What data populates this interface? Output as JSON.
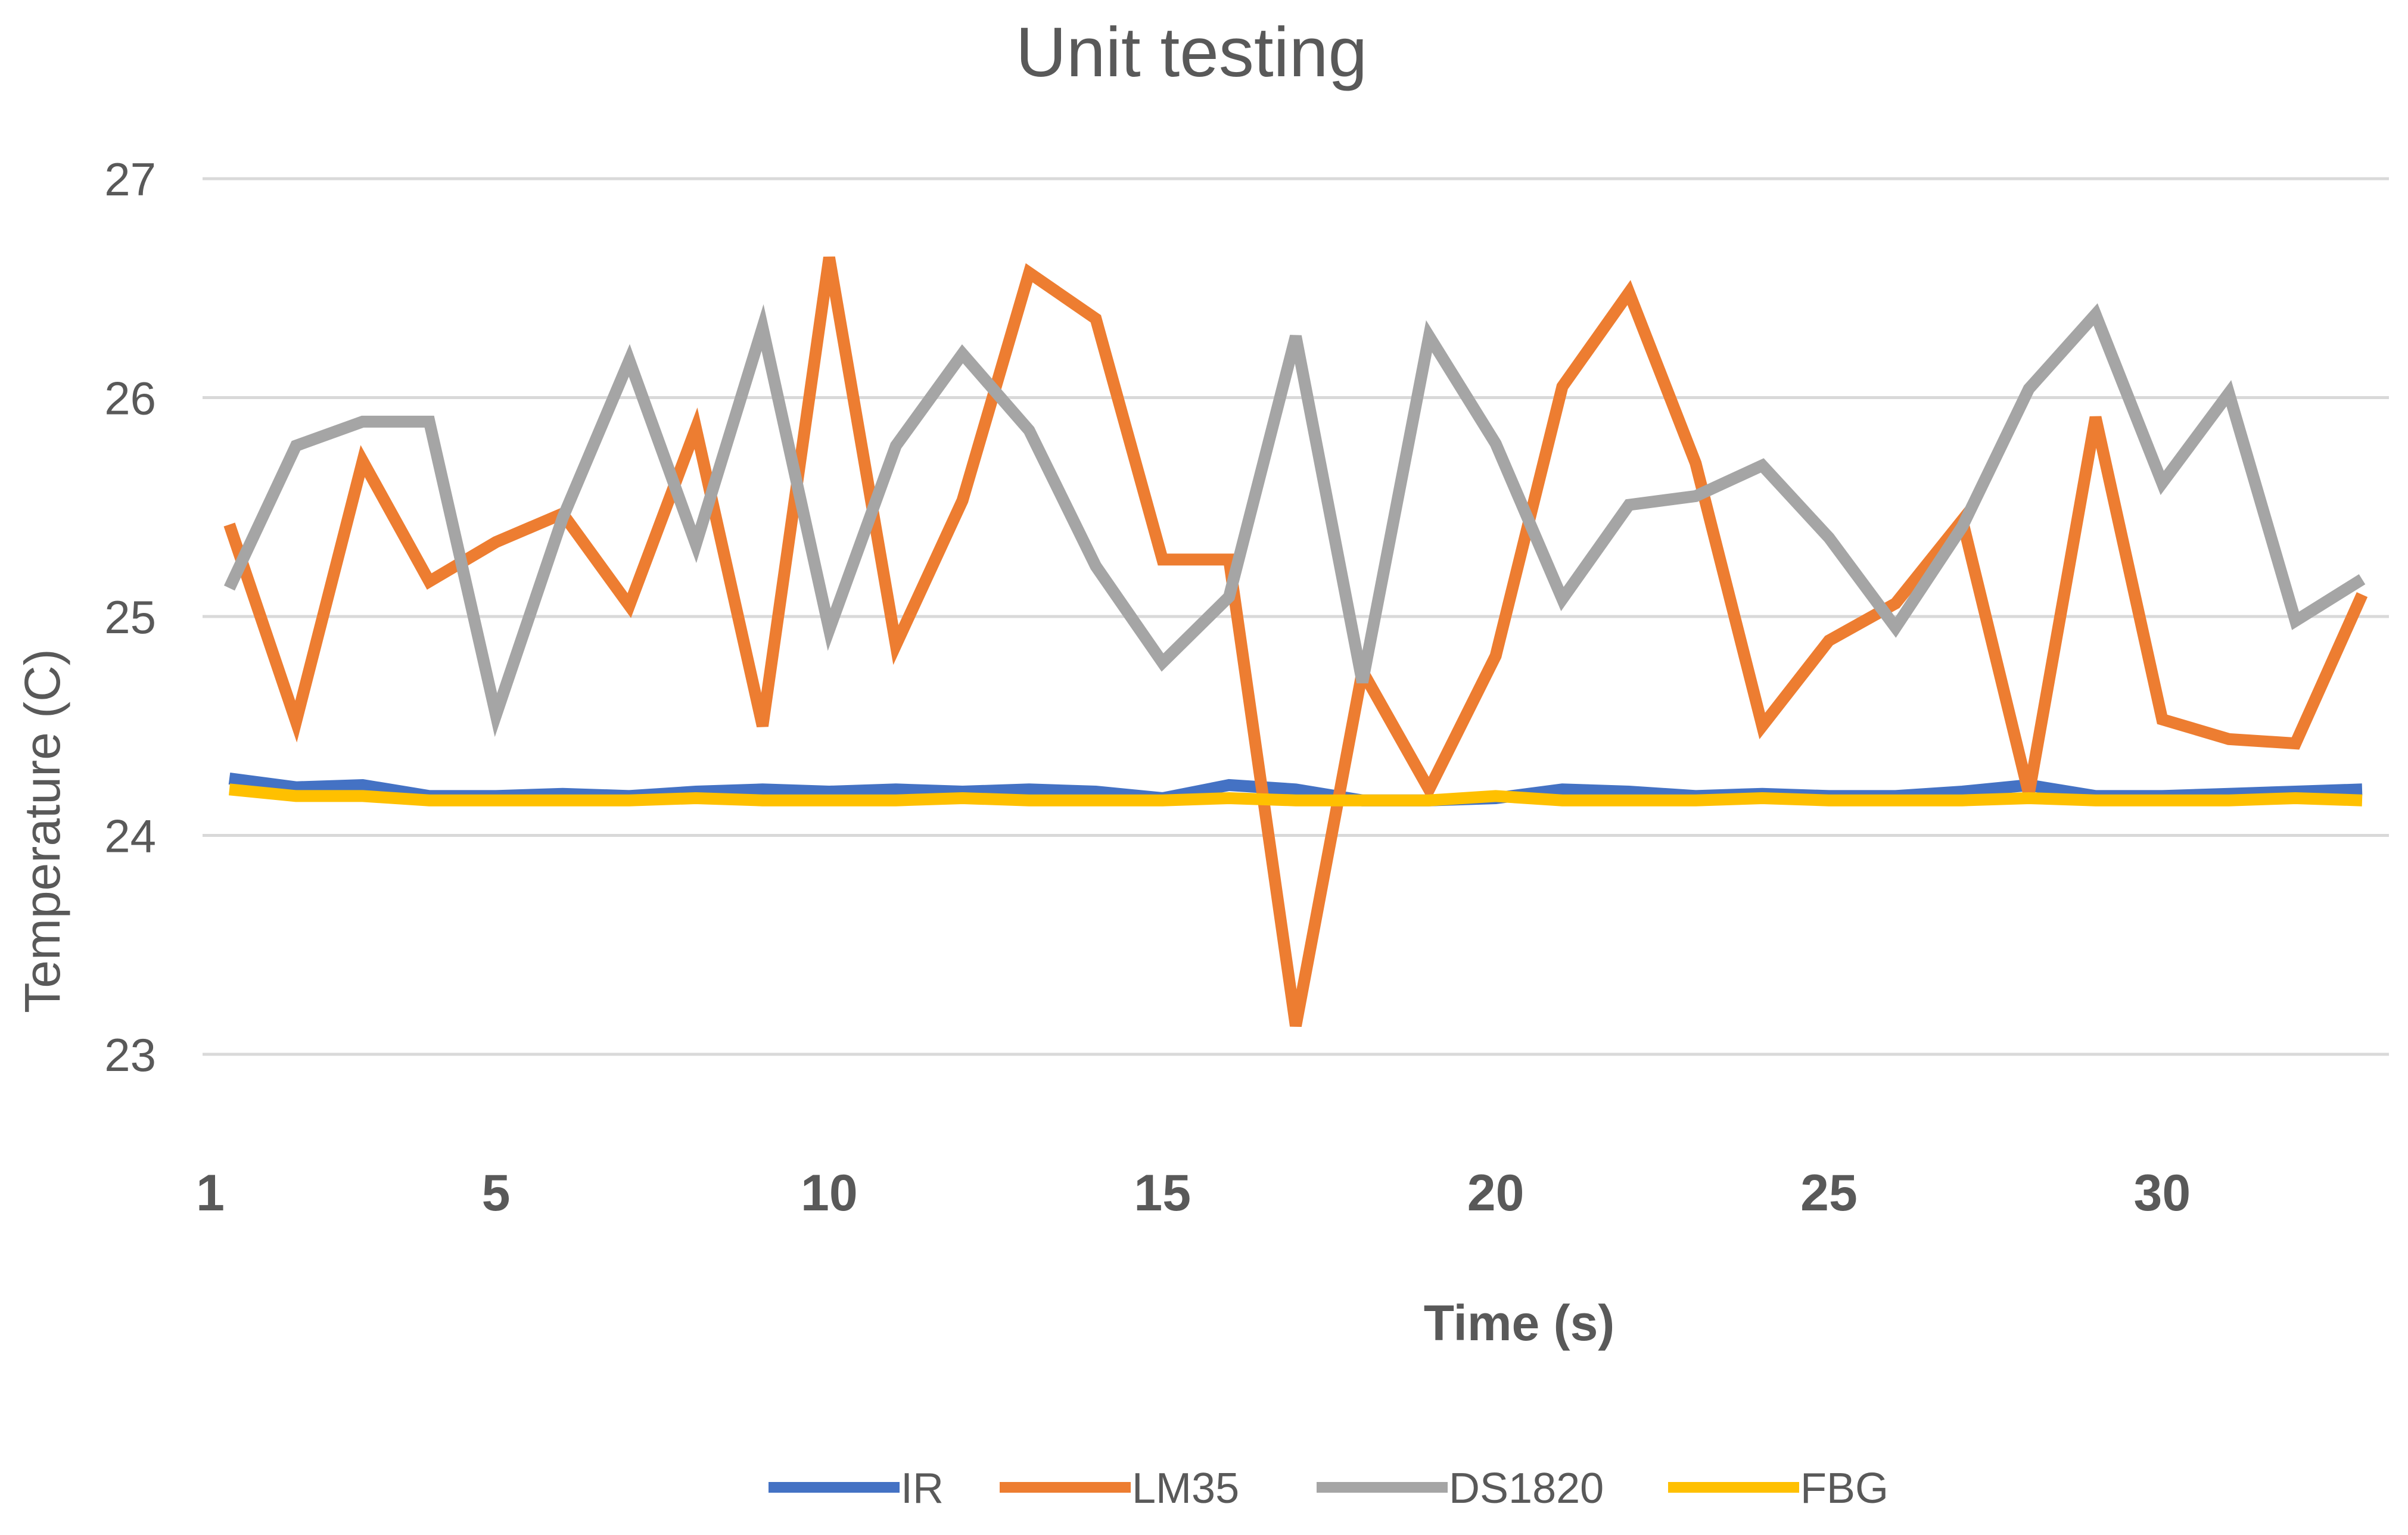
{
  "chart_data": {
    "type": "line",
    "title": "Unit testing",
    "xlabel": "Time (s)",
    "ylabel": "Temperature (C)",
    "ylim": [
      23,
      27
    ],
    "xlim": [
      1,
      33
    ],
    "yticks": [
      23,
      24,
      25,
      26,
      27
    ],
    "xtick_labels": [
      "1",
      "5",
      "10",
      "15",
      "20",
      "25",
      "30"
    ],
    "xticks": [
      1,
      5,
      10,
      15,
      20,
      25,
      30
    ],
    "grid": "horizontal",
    "legend_position": "bottom",
    "x": [
      1,
      2,
      3,
      4,
      5,
      6,
      7,
      8,
      9,
      10,
      11,
      12,
      13,
      14,
      15,
      16,
      17,
      18,
      19,
      20,
      21,
      22,
      23,
      24,
      25,
      26,
      27,
      28,
      29,
      30,
      31,
      32,
      33
    ],
    "series": [
      {
        "name": "IR",
        "color": "#4472c4",
        "values": [
          24.26,
          24.22,
          24.23,
          24.18,
          24.18,
          24.19,
          24.18,
          24.2,
          24.21,
          24.2,
          24.21,
          24.2,
          24.21,
          24.2,
          24.17,
          24.23,
          24.21,
          24.16,
          24.16,
          24.17,
          24.21,
          24.2,
          24.18,
          24.19,
          24.18,
          24.18,
          24.2,
          24.23,
          24.18,
          24.18,
          24.19,
          24.2,
          24.21
        ]
      },
      {
        "name": "LM35",
        "color": "#ed7d31",
        "values": [
          25.42,
          24.52,
          25.71,
          25.16,
          25.34,
          25.47,
          25.05,
          25.86,
          24.5,
          26.64,
          24.87,
          25.53,
          26.57,
          26.36,
          25.26,
          25.26,
          23.13,
          24.75,
          24.21,
          24.82,
          26.05,
          26.48,
          25.7,
          24.5,
          24.89,
          25.06,
          25.44,
          24.19,
          25.91,
          24.53,
          24.44,
          24.42,
          25.1
        ]
      },
      {
        "name": "DS1820",
        "color": "#a5a5a5",
        "values": [
          25.13,
          25.78,
          25.89,
          25.89,
          24.55,
          25.45,
          26.17,
          25.33,
          26.32,
          24.94,
          25.78,
          26.2,
          25.85,
          25.23,
          24.79,
          25.09,
          26.28,
          24.7,
          26.28,
          25.79,
          25.08,
          25.51,
          25.55,
          25.69,
          25.36,
          24.95,
          25.41,
          26.04,
          26.38,
          25.61,
          26.02,
          24.98,
          25.17
        ]
      },
      {
        "name": "FBG",
        "color": "#ffc000",
        "values": [
          24.21,
          24.18,
          24.18,
          24.16,
          24.16,
          24.16,
          24.16,
          24.17,
          24.16,
          24.16,
          24.16,
          24.17,
          24.16,
          24.16,
          24.16,
          24.17,
          24.16,
          24.16,
          24.16,
          24.18,
          24.16,
          24.16,
          24.16,
          24.17,
          24.16,
          24.16,
          24.16,
          24.17,
          24.16,
          24.16,
          24.16,
          24.17,
          24.16
        ]
      }
    ]
  }
}
